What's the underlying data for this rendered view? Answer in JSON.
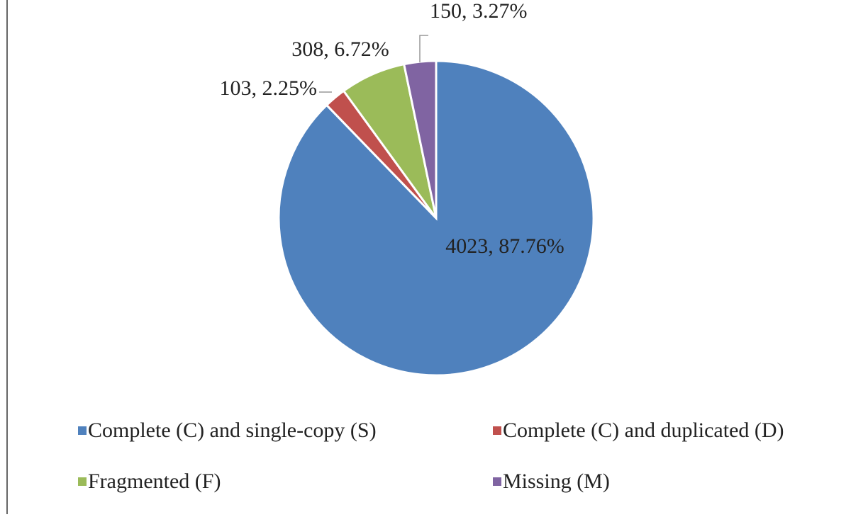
{
  "chart_data": {
    "type": "pie",
    "categories": [
      "Complete (C) and single-copy (S)",
      "Complete (C) and duplicated (D)",
      "Fragmented (F)",
      "Missing (M)"
    ],
    "values": [
      4023,
      103,
      308,
      150
    ],
    "value_labels": [
      "4023, 87.76%",
      "103, 2.25%",
      "308, 6.72%",
      "150, 3.27%"
    ],
    "colors": [
      "#4f81bd",
      "#c0504d",
      "#9bbb59",
      "#8064a2"
    ],
    "legend": "bottom"
  }
}
